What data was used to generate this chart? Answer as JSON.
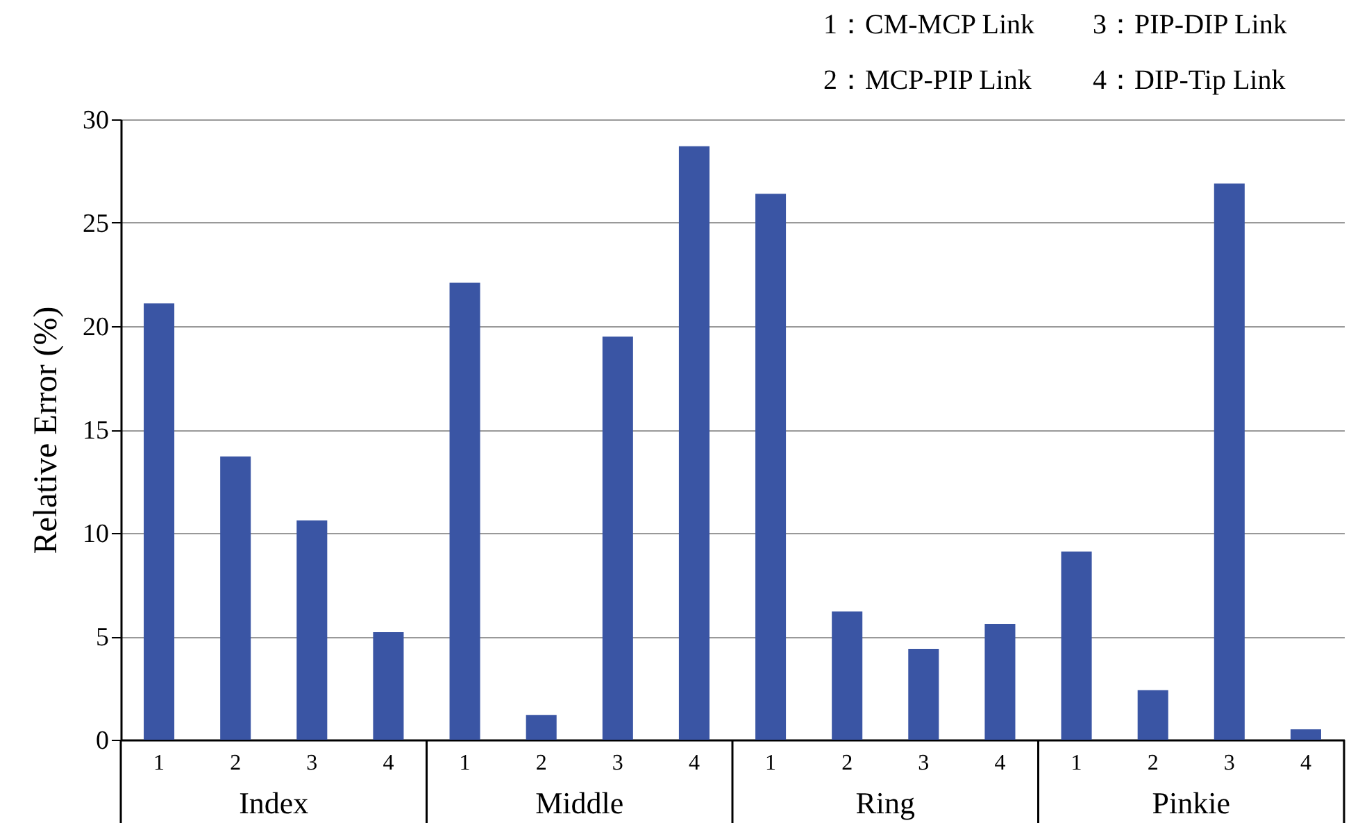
{
  "chart_data": {
    "type": "bar",
    "ylabel": "Relative Error (%)",
    "categories": [
      "1",
      "2",
      "3",
      "4",
      "1",
      "2",
      "3",
      "4",
      "1",
      "2",
      "3",
      "4",
      "1",
      "2",
      "3",
      "4"
    ],
    "values": [
      21.1,
      13.7,
      10.6,
      5.2,
      22.1,
      1.2,
      19.5,
      28.7,
      26.4,
      6.2,
      4.4,
      5.6,
      9.1,
      2.4,
      26.9,
      0.5
    ],
    "color": "#3a55a4",
    "ylim": [
      0,
      30
    ],
    "yticks": [
      0,
      5,
      10,
      15,
      20,
      25,
      30
    ],
    "grid": "y",
    "annotations": [
      "1：CM-MCP Link",
      "2：MCP-PIP Link",
      "3：PIP-DIP Link",
      "4：DIP-Tip Link",
      "Index",
      "Middle",
      "Ring",
      "Pinkie"
    ]
  }
}
